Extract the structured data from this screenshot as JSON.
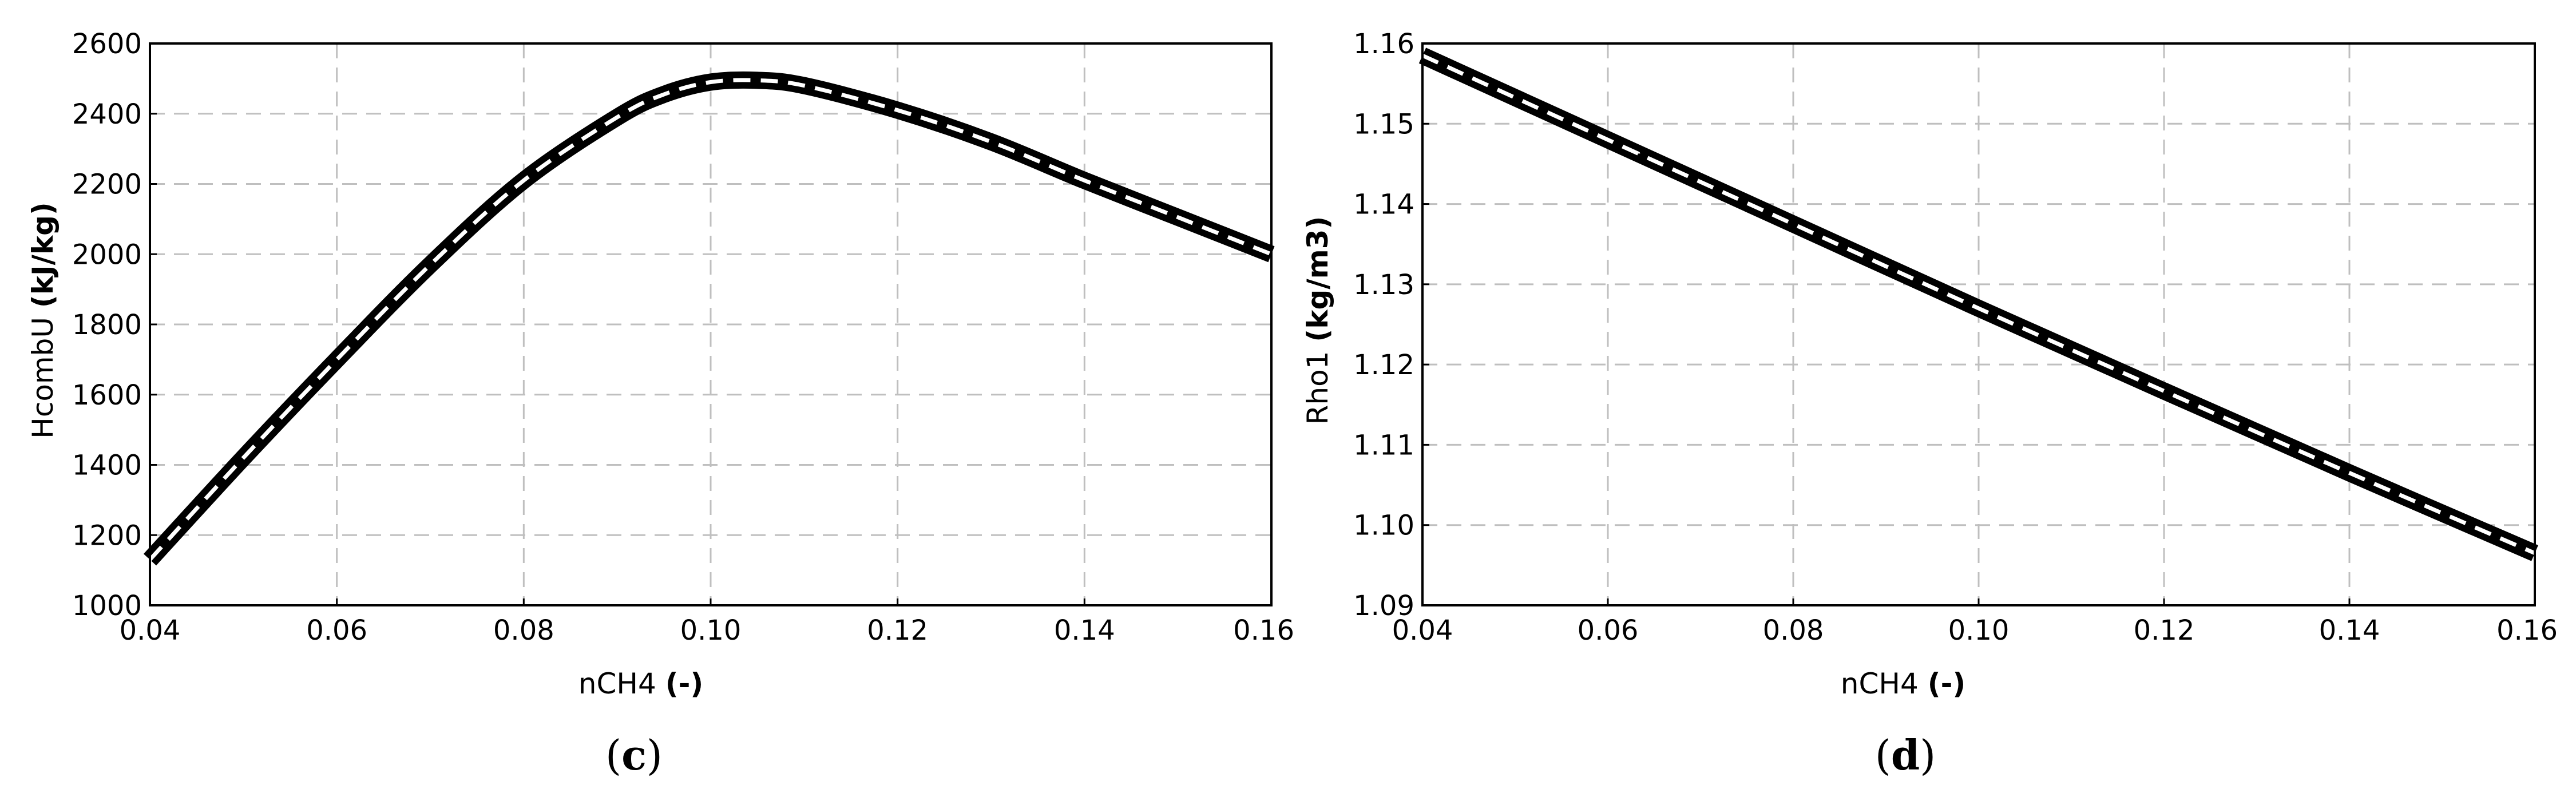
{
  "chart_data": [
    {
      "type": "line",
      "caption": "(c)",
      "caption_label": "c",
      "xlabel": "nCH4",
      "xlabel_unit": "(-)",
      "ylabel": "HcombU",
      "ylabel_unit": "(kJ/kg)",
      "xlim": [
        0.04,
        0.16
      ],
      "ylim": [
        1000,
        2600
      ],
      "xticks": [
        "0.04",
        "0.06",
        "0.08",
        "0.10",
        "0.12",
        "0.14",
        "0.16"
      ],
      "yticks": [
        "1000",
        "1200",
        "1400",
        "1600",
        "1800",
        "2000",
        "2200",
        "2400",
        "2600"
      ],
      "grid": true,
      "series": [
        {
          "x": [
            0.04,
            0.05,
            0.06,
            0.07,
            0.08,
            0.09,
            0.095,
            0.1,
            0.105,
            0.11,
            0.12,
            0.13,
            0.14,
            0.15,
            0.16
          ],
          "y": [
            1130,
            1420,
            1700,
            1970,
            2210,
            2390,
            2455,
            2490,
            2495,
            2480,
            2410,
            2320,
            2210,
            2105,
            2000
          ]
        }
      ]
    },
    {
      "type": "line",
      "caption": "(d)",
      "caption_label": "d",
      "xlabel": "nCH4",
      "xlabel_unit": "(-)",
      "ylabel": "Rho1",
      "ylabel_unit": "(kg/m3)",
      "xlim": [
        0.04,
        0.16
      ],
      "ylim": [
        1.09,
        1.16
      ],
      "xticks": [
        "0.04",
        "0.06",
        "0.08",
        "0.10",
        "0.12",
        "0.14",
        "0.16"
      ],
      "yticks": [
        "1.09",
        "1.10",
        "1.11",
        "1.12",
        "1.13",
        "1.14",
        "1.15",
        "1.16"
      ],
      "grid": true,
      "series": [
        {
          "x": [
            0.04,
            0.06,
            0.08,
            0.1,
            0.12,
            0.14,
            0.16
          ],
          "y": [
            1.1585,
            1.148,
            1.1375,
            1.127,
            1.1167,
            1.1065,
            1.0965
          ]
        }
      ]
    }
  ]
}
